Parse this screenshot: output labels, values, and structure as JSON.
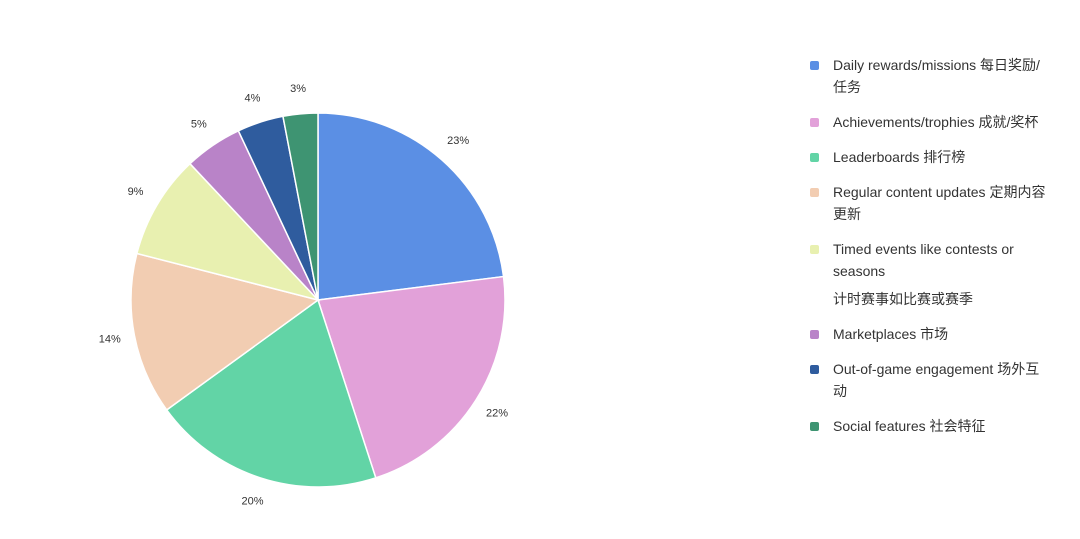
{
  "chart_data": {
    "type": "pie",
    "slices": [
      {
        "label": "Daily rewards/missions 每日奖励/任务",
        "value": 23,
        "display": "23%",
        "color": "#5B8FE4"
      },
      {
        "label": "Achievements/trophies 成就/奖杯",
        "value": 22,
        "display": "22%",
        "color": "#E2A1D9"
      },
      {
        "label": "Leaderboards 排行榜",
        "value": 20,
        "display": "20%",
        "color": "#62D4A6"
      },
      {
        "label": "Regular content updates 定期内容更新",
        "value": 14,
        "display": "14%",
        "color": "#F2CDB2"
      },
      {
        "label": "Timed events like contests or seasons 计时赛事如比赛或赛季",
        "value": 9,
        "display": "9%",
        "color": "#E8F0B0"
      },
      {
        "label": "Marketplaces 市场",
        "value": 5,
        "display": "5%",
        "color": "#B983C8"
      },
      {
        "label": "Out-of-game engagement 场外互动",
        "value": 4,
        "display": "4%",
        "color": "#2F5C9E"
      },
      {
        "label": "Social features 社会特征",
        "value": 3,
        "display": "3%",
        "color": "#3E9472"
      }
    ],
    "legend_position": "right",
    "start_angle": "12 o'clock",
    "direction": "clockwise"
  },
  "legend": [
    {
      "text": "Daily rewards/missions  每日奖励/任务",
      "color": "#5B8FE4"
    },
    {
      "text": "Achievements/trophies  成就/奖杯",
      "color": "#E2A1D9"
    },
    {
      "text": "Leaderboards  排行榜",
      "color": "#62D4A6"
    },
    {
      "text": "Regular content updates  定期内容更新",
      "color": "#F2CDB2"
    },
    {
      "text": "Timed events like contests or seasons",
      "extra": "计时赛事如比赛或赛季",
      "color": "#E8F0B0"
    },
    {
      "text": "Marketplaces  市场",
      "color": "#B983C8"
    },
    {
      "text": "Out-of-game engagement  场外互动",
      "color": "#2F5C9E"
    },
    {
      "text": "Social features  社会特征",
      "color": "#3E9472"
    }
  ]
}
